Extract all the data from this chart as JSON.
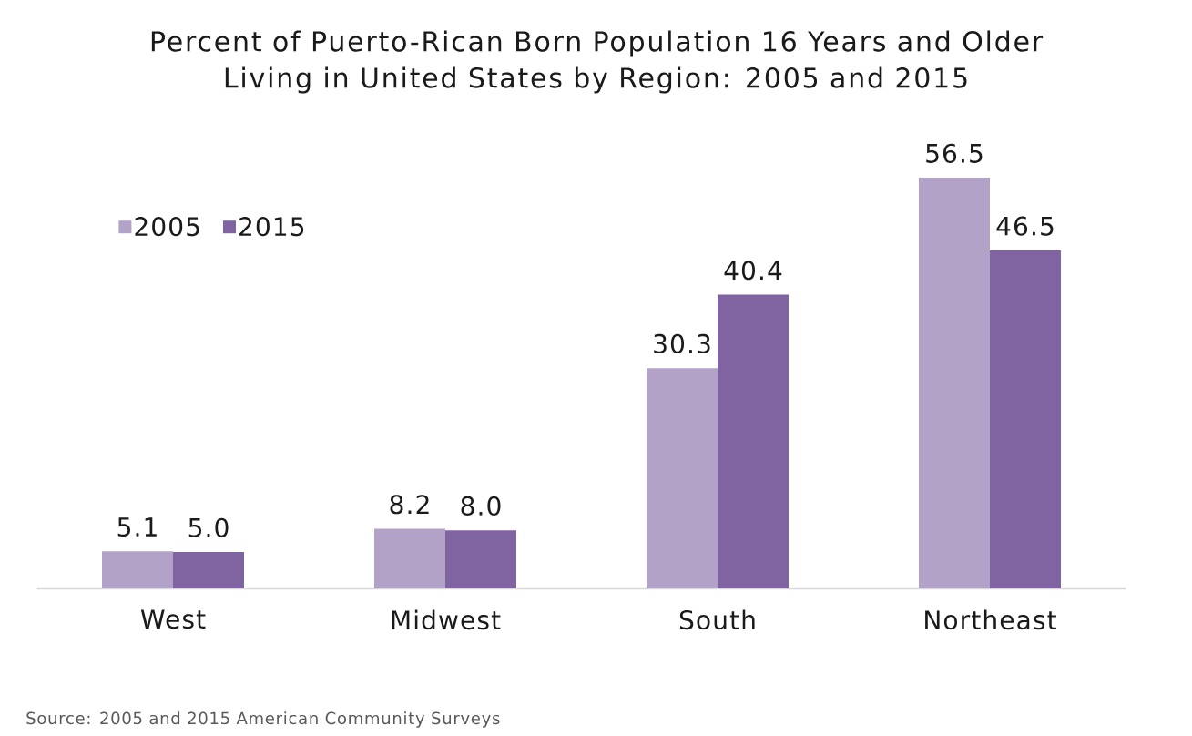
{
  "chart_data": {
    "type": "bar",
    "title": "Percent of Puerto-Rican Born Population 16 Years and Older Living in United States by Region: 2005 and 2015",
    "categories": [
      "West",
      "Midwest",
      "South",
      "Northeast"
    ],
    "series": [
      {
        "name": "2005",
        "color": "#b3a2c7",
        "values": [
          5.1,
          8.2,
          30.3,
          56.5
        ],
        "value_labels": [
          "5.1",
          "8.2",
          "30.3",
          "56.5"
        ]
      },
      {
        "name": "2015",
        "color": "#8064a2",
        "values": [
          5.0,
          8.0,
          40.4,
          46.5
        ],
        "value_labels": [
          "5.0",
          "8.0",
          "40.4",
          "46.5"
        ]
      }
    ],
    "legend": "top left",
    "annotations": [
      "Source: 2005 and 2015 American Community Surveys"
    ]
  }
}
